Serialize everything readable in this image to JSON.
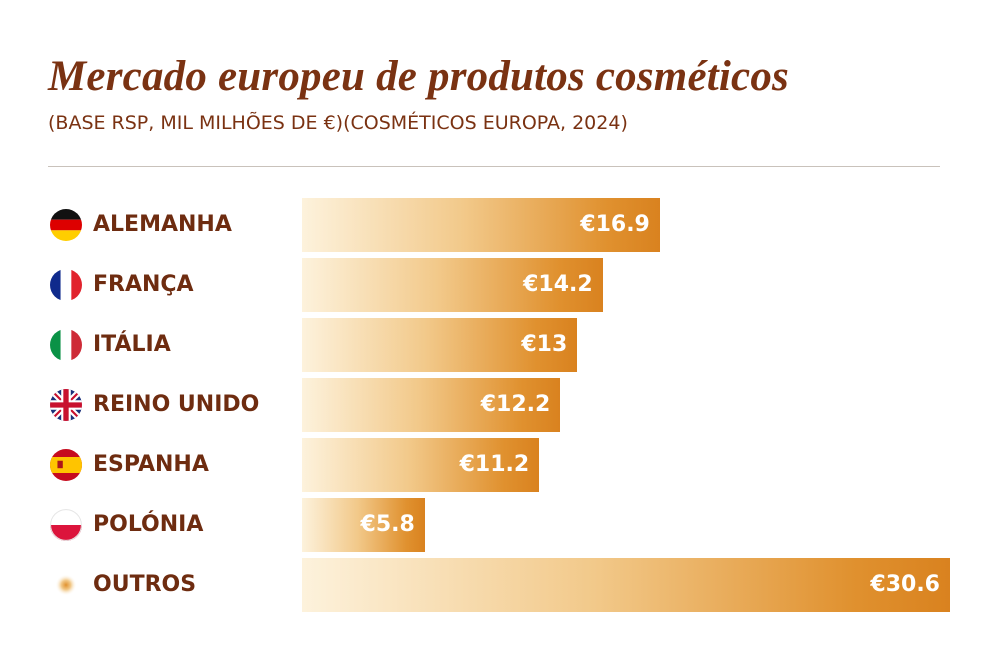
{
  "chart_data": {
    "type": "bar",
    "orientation": "horizontal",
    "title": "Mercado europeu de produtos cosméticos",
    "subtitle": "(BASE RSP, MIL MILHÕES DE €)(COSMÉTICOS EUROPA, 2024)",
    "categories": [
      "ALEMANHA",
      "FRANÇA",
      "ITÁLIA",
      "REINO UNIDO",
      "ESPANHA",
      "POLÓNIA",
      "OUTROS"
    ],
    "values": [
      16.9,
      14.2,
      13,
      12.2,
      11.2,
      5.8,
      30.6
    ],
    "value_labels": [
      "€16.9",
      "€14.2",
      "€13",
      "€12.2",
      "€11.2",
      "€5.8",
      "€30.6"
    ],
    "flag_icons": [
      "germany-flag-icon",
      "france-flag-icon",
      "italy-flag-icon",
      "uk-flag-icon",
      "spain-flag-icon",
      "poland-flag-icon",
      "others-dot-icon"
    ],
    "xlim": [
      0,
      30.6
    ],
    "grid": false,
    "colors": {
      "title": "#7a3212",
      "label": "#6e2c10",
      "bar_start": "#fdf2dc",
      "bar_end": "#d9821f",
      "value_text": "#ffffff"
    }
  }
}
